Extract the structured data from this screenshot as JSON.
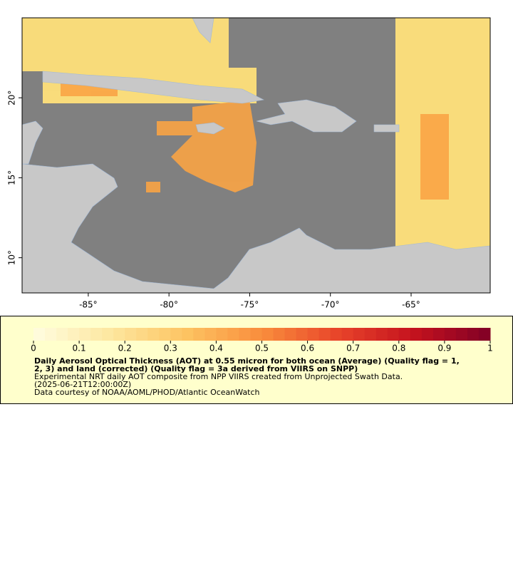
{
  "chart_data": {
    "type": "map",
    "xlim": [
      -89.1,
      -60.1
    ],
    "ylim": [
      7.8,
      25
    ],
    "xticks": [
      {
        "value": -85,
        "label": "-85°"
      },
      {
        "value": -80,
        "label": "-80°"
      },
      {
        "value": -75,
        "label": "-75°"
      },
      {
        "value": -70,
        "label": "-70°"
      },
      {
        "value": -65,
        "label": "-65°"
      }
    ],
    "yticks": [
      {
        "value": 10,
        "label": "10°"
      },
      {
        "value": 15,
        "label": "15°"
      },
      {
        "value": 20,
        "label": "20°"
      }
    ],
    "colorbar": {
      "lim": [
        0,
        1
      ],
      "ticks": [
        0,
        0.1,
        0.2,
        0.3,
        0.4,
        0.5,
        0.6,
        0.7,
        0.8,
        0.9,
        1
      ],
      "colors": [
        "#fffde0",
        "#fde7a0",
        "#fdc462",
        "#f98d3c",
        "#e8442a",
        "#c4121e",
        "#800026"
      ]
    },
    "title": "Daily Aerosol Optical Thickness (AOT) at 0.55 micron for both ocean (Average) (Quality flag = 1,",
    "title_line2": "2, 3) and land (corrected) (Quality flag = 3a derived from VIIRS on SNPP)",
    "description": "Experimental NRT daily AOT composite from NPP VIIRS created from Unprojected Swath Data.",
    "time": "(2025-06-21T12:00:00Z)",
    "credit": "Data courtesy of NOAA/AOML/PHOD/Atlantic OceanWatch"
  }
}
